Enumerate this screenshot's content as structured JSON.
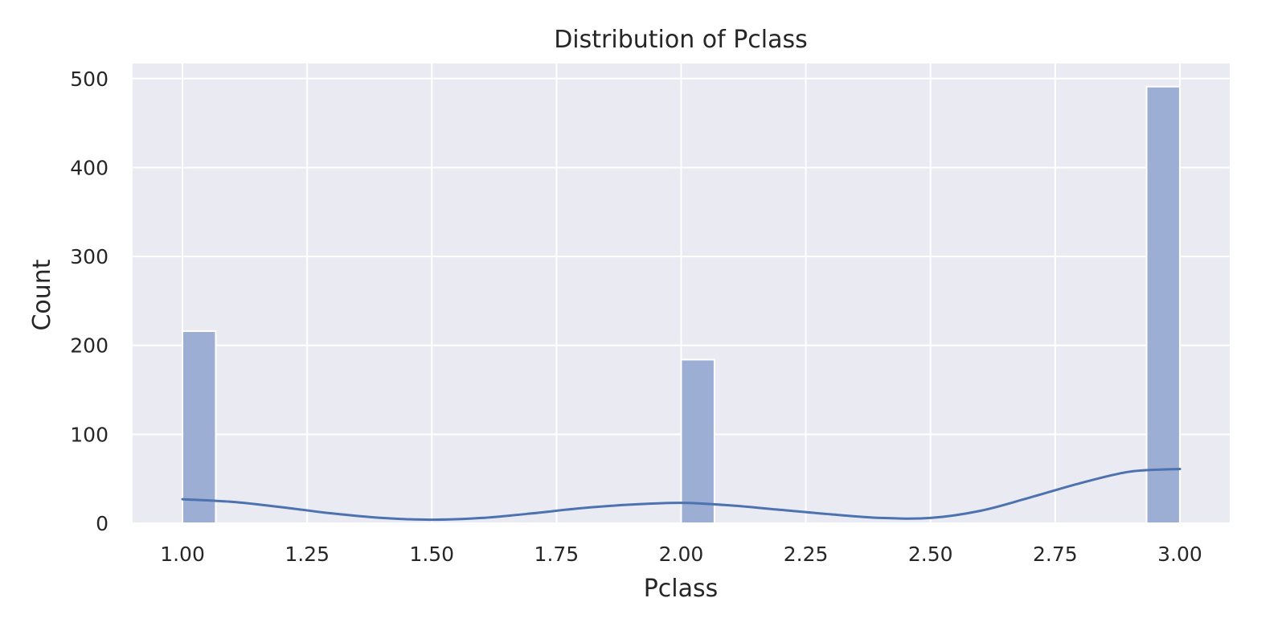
{
  "chart_data": {
    "type": "bar",
    "title": "Distribution of Pclass",
    "xlabel": "Pclass",
    "ylabel": "Count",
    "xlim": [
      0.9,
      3.1
    ],
    "ylim": [
      0,
      517
    ],
    "xticks": [
      "1.00",
      "1.25",
      "1.50",
      "1.75",
      "2.00",
      "2.25",
      "2.50",
      "2.75",
      "3.00"
    ],
    "yticks": [
      "0",
      "100",
      "200",
      "300",
      "400",
      "500"
    ],
    "grid": true,
    "bins": [
      {
        "x_start": 1.0,
        "x_end": 1.0667,
        "value": 216
      },
      {
        "x_start": 2.0,
        "x_end": 2.0667,
        "value": 184
      },
      {
        "x_start": 2.9333,
        "x_end": 3.0,
        "value": 491
      }
    ],
    "kde": {
      "x": [
        1.0,
        1.1,
        1.2,
        1.3,
        1.4,
        1.5,
        1.6,
        1.7,
        1.8,
        1.9,
        2.0,
        2.1,
        2.2,
        2.3,
        2.4,
        2.5,
        2.6,
        2.7,
        2.8,
        2.9,
        3.0
      ],
      "y": [
        27,
        24,
        18,
        11,
        6,
        4,
        6,
        11,
        17,
        21,
        23,
        20,
        15,
        10,
        6,
        6,
        14,
        29,
        45,
        58,
        61
      ]
    },
    "colors": {
      "plot_background": "#eaeaf2",
      "grid": "#ffffff",
      "bar_fill": "#9caed4",
      "bar_edge": "#ffffff",
      "kde_line": "#4c72b0",
      "text": "#262626"
    }
  }
}
